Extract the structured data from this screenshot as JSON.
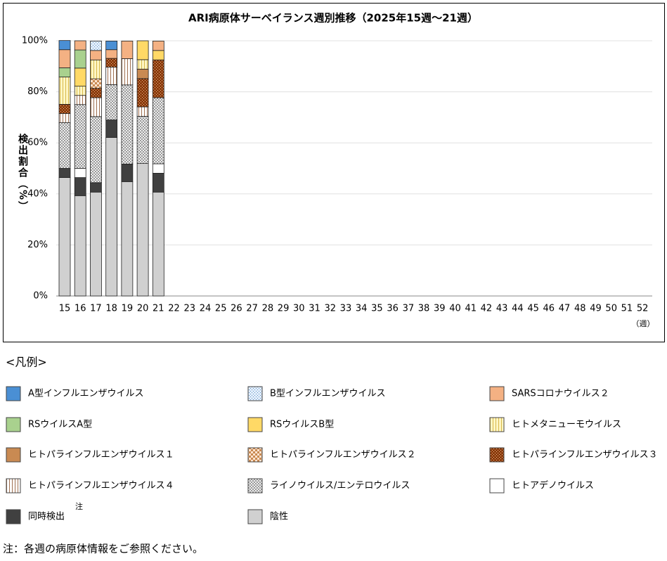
{
  "chart_data": {
    "type": "stacked_bar",
    "title": "ARI病原体サーベイランス週別推移（2025年15週～21週）",
    "y_label": "検出割合（%）",
    "x_unit": "（週）",
    "legend_title": "<凡例>",
    "legend_note_mark": "注",
    "footnote": "注：各週の病原体情報をご参照ください。",
    "ylim": [
      0,
      100
    ],
    "yticks": [
      {
        "value": 0,
        "label": "0%"
      },
      {
        "value": 20,
        "label": "20%"
      },
      {
        "value": 40,
        "label": "40%"
      },
      {
        "value": 60,
        "label": "60%"
      },
      {
        "value": 80,
        "label": "80%"
      },
      {
        "value": 100,
        "label": "100%"
      }
    ],
    "grid": true,
    "categories": [
      "15",
      "16",
      "17",
      "18",
      "19",
      "20",
      "21",
      "22",
      "23",
      "24",
      "25",
      "26",
      "27",
      "28",
      "29",
      "30",
      "31",
      "32",
      "33",
      "34",
      "35",
      "36",
      "37",
      "38",
      "39",
      "40",
      "41",
      "42",
      "43",
      "44",
      "45",
      "46",
      "47",
      "48",
      "49",
      "50",
      "51",
      "52"
    ],
    "series": [
      {
        "name": "A型インフルエンザウイルス",
        "color": "#4a8fd4",
        "pattern": "solid",
        "values": [
          3.6,
          0,
          0,
          3.4,
          0,
          0,
          0,
          null,
          null,
          null,
          null,
          null,
          null,
          null,
          null,
          null,
          null,
          null,
          null,
          null,
          null,
          null,
          null,
          null,
          null,
          null,
          null,
          null,
          null,
          null,
          null,
          null,
          null,
          null,
          null,
          null,
          null,
          null
        ]
      },
      {
        "name": "B型インフルエンザウイルス",
        "color": "#e3eefa",
        "pattern": "dots",
        "pattern_color": "#5b8fc9",
        "values": [
          0,
          0,
          3.7,
          0,
          0,
          0,
          0,
          null,
          null,
          null,
          null,
          null,
          null,
          null,
          null,
          null,
          null,
          null,
          null,
          null,
          null,
          null,
          null,
          null,
          null,
          null,
          null,
          null,
          null,
          null,
          null,
          null,
          null,
          null,
          null,
          null,
          null,
          null
        ]
      },
      {
        "name": "SARSコロナウイルス２",
        "color": "#f4b183",
        "pattern": "solid",
        "values": [
          7.1,
          3.6,
          3.7,
          3.4,
          6.9,
          0,
          3.7,
          null,
          null,
          null,
          null,
          null,
          null,
          null,
          null,
          null,
          null,
          null,
          null,
          null,
          null,
          null,
          null,
          null,
          null,
          null,
          null,
          null,
          null,
          null,
          null,
          null,
          null,
          null,
          null,
          null,
          null,
          null
        ]
      },
      {
        "name": "RSウイルスA型",
        "color": "#a9d18e",
        "pattern": "solid",
        "values": [
          3.6,
          7.1,
          0,
          0,
          0,
          0,
          0,
          null,
          null,
          null,
          null,
          null,
          null,
          null,
          null,
          null,
          null,
          null,
          null,
          null,
          null,
          null,
          null,
          null,
          null,
          null,
          null,
          null,
          null,
          null,
          null,
          null,
          null,
          null,
          null,
          null,
          null,
          null
        ]
      },
      {
        "name": "RSウイルスB型",
        "color": "#ffd966",
        "pattern": "solid",
        "values": [
          0,
          7.1,
          0,
          0,
          0,
          7.4,
          3.7,
          null,
          null,
          null,
          null,
          null,
          null,
          null,
          null,
          null,
          null,
          null,
          null,
          null,
          null,
          null,
          null,
          null,
          null,
          null,
          null,
          null,
          null,
          null,
          null,
          null,
          null,
          null,
          null,
          null,
          null,
          null
        ]
      },
      {
        "name": "ヒトメタニューモウイルス",
        "color": "#fff6c4",
        "pattern": "vlines",
        "pattern_color": "#d6b84a",
        "values": [
          10.7,
          3.6,
          7.4,
          0,
          0,
          3.7,
          0,
          null,
          null,
          null,
          null,
          null,
          null,
          null,
          null,
          null,
          null,
          null,
          null,
          null,
          null,
          null,
          null,
          null,
          null,
          null,
          null,
          null,
          null,
          null,
          null,
          null,
          null,
          null,
          null,
          null,
          null,
          null
        ]
      },
      {
        "name": "ヒトパラインフルエンザウイルス１",
        "color": "#c98a52",
        "pattern": "solid",
        "values": [
          0,
          0,
          0,
          0,
          0,
          3.7,
          0,
          null,
          null,
          null,
          null,
          null,
          null,
          null,
          null,
          null,
          null,
          null,
          null,
          null,
          null,
          null,
          null,
          null,
          null,
          null,
          null,
          null,
          null,
          null,
          null,
          null,
          null,
          null,
          null,
          null,
          null,
          null
        ]
      },
      {
        "name": "ヒトパラインフルエンザウイルス２",
        "color": "#fbe3cf",
        "pattern": "checker",
        "pattern_color": "#c98a52",
        "values": [
          0,
          0,
          3.7,
          0,
          0,
          0,
          0,
          null,
          null,
          null,
          null,
          null,
          null,
          null,
          null,
          null,
          null,
          null,
          null,
          null,
          null,
          null,
          null,
          null,
          null,
          null,
          null,
          null,
          null,
          null,
          null,
          null,
          null,
          null,
          null,
          null,
          null,
          null
        ]
      },
      {
        "name": "ヒトパラインフルエンザウイルス３",
        "color": "#8a3a0c",
        "pattern": "dots",
        "pattern_color": "#f0c090",
        "values": [
          3.6,
          0,
          3.7,
          3.4,
          0,
          11.1,
          14.8,
          null,
          null,
          null,
          null,
          null,
          null,
          null,
          null,
          null,
          null,
          null,
          null,
          null,
          null,
          null,
          null,
          null,
          null,
          null,
          null,
          null,
          null,
          null,
          null,
          null,
          null,
          null,
          null,
          null,
          null,
          null
        ]
      },
      {
        "name": "ヒトパラインフルエンザウイルス４",
        "color": "#ffffff",
        "pattern": "vlines",
        "pattern_color": "#a07050",
        "values": [
          3.6,
          3.6,
          7.4,
          6.9,
          10.3,
          3.7,
          0,
          null,
          null,
          null,
          null,
          null,
          null,
          null,
          null,
          null,
          null,
          null,
          null,
          null,
          null,
          null,
          null,
          null,
          null,
          null,
          null,
          null,
          null,
          null,
          null,
          null,
          null,
          null,
          null,
          null,
          null,
          null
        ]
      },
      {
        "name": "ライノウイルス/エンテロウイルス",
        "color": "#ffffff",
        "pattern": "cross",
        "pattern_color": "#777777",
        "values": [
          17.9,
          25,
          25.9,
          13.8,
          31,
          18.5,
          25.9,
          null,
          null,
          null,
          null,
          null,
          null,
          null,
          null,
          null,
          null,
          null,
          null,
          null,
          null,
          null,
          null,
          null,
          null,
          null,
          null,
          null,
          null,
          null,
          null,
          null,
          null,
          null,
          null,
          null,
          null,
          null
        ]
      },
      {
        "name": "ヒトアデノウイルス",
        "color": "#ffffff",
        "pattern": "solid",
        "values": [
          0,
          3.6,
          0,
          0,
          0,
          0,
          3.7,
          null,
          null,
          null,
          null,
          null,
          null,
          null,
          null,
          null,
          null,
          null,
          null,
          null,
          null,
          null,
          null,
          null,
          null,
          null,
          null,
          null,
          null,
          null,
          null,
          null,
          null,
          null,
          null,
          null,
          null,
          null
        ]
      },
      {
        "name": "同時検出",
        "color": "#404040",
        "pattern": "solid",
        "values": [
          3.6,
          7.1,
          3.7,
          6.9,
          6.9,
          0,
          7.4,
          null,
          null,
          null,
          null,
          null,
          null,
          null,
          null,
          null,
          null,
          null,
          null,
          null,
          null,
          null,
          null,
          null,
          null,
          null,
          null,
          null,
          null,
          null,
          null,
          null,
          null,
          null,
          null,
          null,
          null,
          null
        ]
      },
      {
        "name": "陰性",
        "color": "#d0d0d0",
        "pattern": "solid",
        "values": [
          46.4,
          39.3,
          40.7,
          62.1,
          44.8,
          51.9,
          40.7,
          null,
          null,
          null,
          null,
          null,
          null,
          null,
          null,
          null,
          null,
          null,
          null,
          null,
          null,
          null,
          null,
          null,
          null,
          null,
          null,
          null,
          null,
          null,
          null,
          null,
          null,
          null,
          null,
          null,
          null,
          null
        ]
      }
    ]
  }
}
